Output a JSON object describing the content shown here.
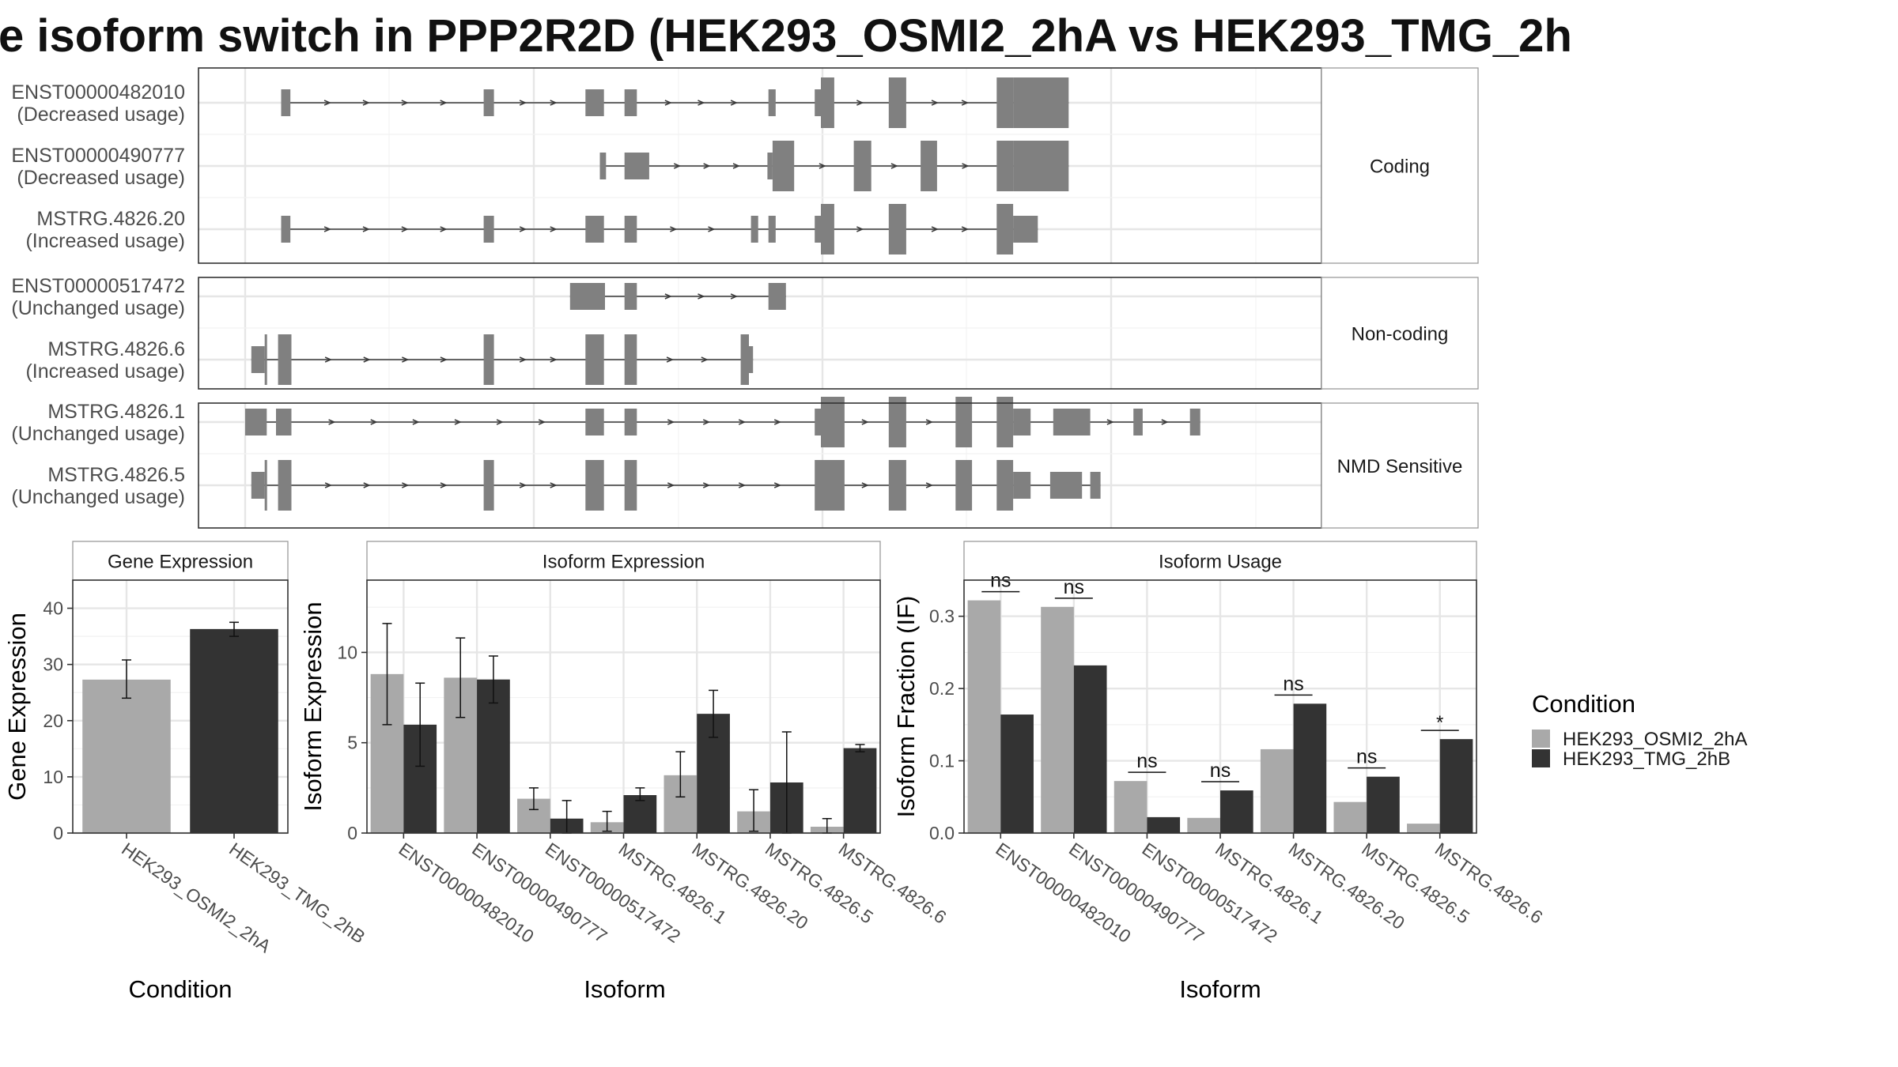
{
  "title": "e isoform switch in PPP2R2D (HEK293_OSMI2_2hA vs HEK293_TMG_2h",
  "colors": {
    "osmi": "#a9a9a9",
    "tmg": "#333333",
    "exon": "#808080",
    "intron": "#3a3a3a"
  },
  "legend": {
    "title": "Condition",
    "items": [
      {
        "label": "HEK293_OSMI2_2hA",
        "color": "#a9a9a9"
      },
      {
        "label": "HEK293_TMG_2hB",
        "color": "#333333"
      }
    ]
  },
  "structure": {
    "genomic_range": [
      0,
      1000
    ],
    "groups": [
      {
        "label": "Coding",
        "transcripts": [
          {
            "id": "ENST00000482010",
            "usage": "(Decreased usage)",
            "exons": [
              [
                35,
                44,
                "n"
              ],
              [
                232,
                242,
                "n"
              ],
              [
                331,
                349,
                "n"
              ],
              [
                369,
                381,
                "n"
              ],
              [
                509,
                516,
                "n"
              ],
              [
                554,
                560,
                "n"
              ],
              [
                560,
                573,
                "w"
              ],
              [
                626,
                643,
                "w"
              ],
              [
                731,
                747,
                "w"
              ],
              [
                747,
                801,
                "w"
              ]
            ]
          },
          {
            "id": "ENST00000490777",
            "usage": "(Decreased usage)",
            "exons": [
              [
                345,
                351,
                "n"
              ],
              [
                369,
                393,
                "n"
              ],
              [
                508,
                513,
                "n"
              ],
              [
                513,
                534,
                "w"
              ],
              [
                592,
                609,
                "w"
              ],
              [
                657,
                673,
                "w"
              ],
              [
                731,
                747,
                "w"
              ],
              [
                747,
                801,
                "w"
              ]
            ]
          },
          {
            "id": "MSTRG.4826.20",
            "usage": "(Increased usage)",
            "exons": [
              [
                35,
                44,
                "n"
              ],
              [
                232,
                242,
                "n"
              ],
              [
                331,
                349,
                "n"
              ],
              [
                369,
                381,
                "n"
              ],
              [
                492,
                499,
                "n"
              ],
              [
                509,
                516,
                "n"
              ],
              [
                554,
                560,
                "n"
              ],
              [
                560,
                573,
                "w"
              ],
              [
                626,
                643,
                "w"
              ],
              [
                731,
                747,
                "w"
              ],
              [
                747,
                771,
                "n"
              ]
            ]
          }
        ]
      },
      {
        "label": "Non-coding",
        "transcripts": [
          {
            "id": "ENST00000517472",
            "usage": "(Unchanged usage)",
            "exons": [
              [
                316,
                350,
                "n"
              ],
              [
                369,
                381,
                "n"
              ],
              [
                509,
                526,
                "n"
              ]
            ]
          },
          {
            "id": "MSTRG.4826.6",
            "usage": "(Increased usage)",
            "exons": [
              [
                6,
                19,
                "n"
              ],
              [
                19,
                21,
                "w"
              ],
              [
                32,
                45,
                "w"
              ],
              [
                232,
                242,
                "w"
              ],
              [
                331,
                349,
                "w"
              ],
              [
                369,
                381,
                "w"
              ],
              [
                482,
                490,
                "w"
              ],
              [
                490,
                494,
                "n"
              ]
            ]
          }
        ]
      },
      {
        "label": "NMD Sensitive",
        "transcripts": [
          {
            "id": "MSTRG.4826.1",
            "usage": "(Unchanged usage)",
            "exons": [
              [
                0,
                21,
                "n"
              ],
              [
                30,
                45,
                "n"
              ],
              [
                331,
                349,
                "n"
              ],
              [
                369,
                381,
                "n"
              ],
              [
                554,
                560,
                "n"
              ],
              [
                560,
                583,
                "w"
              ],
              [
                626,
                643,
                "w"
              ],
              [
                691,
                707,
                "w"
              ],
              [
                731,
                747,
                "w"
              ],
              [
                747,
                764,
                "n"
              ],
              [
                786,
                822,
                "n"
              ],
              [
                864,
                873,
                "n"
              ],
              [
                919,
                929,
                "n"
              ]
            ]
          },
          {
            "id": "MSTRG.4826.5",
            "usage": "(Unchanged usage)",
            "exons": [
              [
                6,
                19,
                "n"
              ],
              [
                19,
                21,
                "w"
              ],
              [
                32,
                45,
                "w"
              ],
              [
                232,
                242,
                "w"
              ],
              [
                331,
                349,
                "w"
              ],
              [
                369,
                381,
                "w"
              ],
              [
                554,
                583,
                "w"
              ],
              [
                626,
                643,
                "w"
              ],
              [
                691,
                707,
                "w"
              ],
              [
                731,
                747,
                "w"
              ],
              [
                747,
                764,
                "n"
              ],
              [
                783,
                814,
                "n"
              ],
              [
                822,
                832,
                "n"
              ]
            ]
          }
        ]
      }
    ]
  },
  "chart_data": [
    {
      "type": "bar",
      "title": "Gene Expression",
      "xlabel": "Condition",
      "ylabel": "Gene Expression",
      "categories": [
        "HEK293_OSMI2_2hA",
        "HEK293_TMG_2hB"
      ],
      "values": [
        27.3,
        36.3
      ],
      "errors": [
        [
          24.0,
          30.8
        ],
        [
          35.0,
          37.5
        ]
      ],
      "ylim": [
        0,
        45
      ],
      "yticks": [
        0,
        10,
        20,
        30,
        40
      ]
    },
    {
      "type": "bar",
      "title": "Isoform Expression",
      "xlabel": "Isoform",
      "ylabel": "Isoform Expression",
      "categories": [
        "ENST00000482010",
        "ENST00000490777",
        "ENST00000517472",
        "MSTRG.4826.1",
        "MSTRG.4826.20",
        "MSTRG.4826.5",
        "MSTRG.4826.6"
      ],
      "series": [
        {
          "name": "HEK293_OSMI2_2hA",
          "values": [
            8.8,
            8.6,
            1.9,
            0.6,
            3.2,
            1.2,
            0.35
          ],
          "errors": [
            [
              6.0,
              11.6
            ],
            [
              6.4,
              10.8
            ],
            [
              1.3,
              2.5
            ],
            [
              0.1,
              1.2
            ],
            [
              2.0,
              4.5
            ],
            [
              0.1,
              2.4
            ],
            [
              0.0,
              0.8
            ]
          ]
        },
        {
          "name": "HEK293_TMG_2hB",
          "values": [
            6.0,
            8.5,
            0.8,
            2.1,
            6.6,
            2.8,
            4.7
          ],
          "errors": [
            [
              3.7,
              8.3
            ],
            [
              7.2,
              9.8
            ],
            [
              0.0,
              1.8
            ],
            [
              1.8,
              2.5
            ],
            [
              5.3,
              7.9
            ],
            [
              0.0,
              5.6
            ],
            [
              4.5,
              4.9
            ]
          ]
        }
      ],
      "ylim": [
        0,
        14
      ],
      "yticks": [
        0,
        5,
        10
      ]
    },
    {
      "type": "bar",
      "title": "Isoform Usage",
      "xlabel": "Isoform",
      "ylabel": "Isoform Fraction (IF)",
      "categories": [
        "ENST00000482010",
        "ENST00000490777",
        "ENST00000517472",
        "MSTRG.4826.1",
        "MSTRG.4826.20",
        "MSTRG.4826.5",
        "MSTRG.4826.6"
      ],
      "series": [
        {
          "name": "HEK293_OSMI2_2hA",
          "values": [
            0.322,
            0.313,
            0.072,
            0.021,
            0.116,
            0.043,
            0.013
          ]
        },
        {
          "name": "HEK293_TMG_2hB",
          "values": [
            0.164,
            0.232,
            0.022,
            0.059,
            0.179,
            0.078,
            0.13
          ]
        }
      ],
      "significance": [
        "ns",
        "ns",
        "ns",
        "ns",
        "ns",
        "ns",
        "*"
      ],
      "ylim": [
        0,
        0.35
      ],
      "yticks": [
        0.0,
        0.1,
        0.2,
        0.3
      ],
      "ytick_labels": [
        "0.0",
        "0.1",
        "0.2",
        "0.3"
      ]
    }
  ]
}
